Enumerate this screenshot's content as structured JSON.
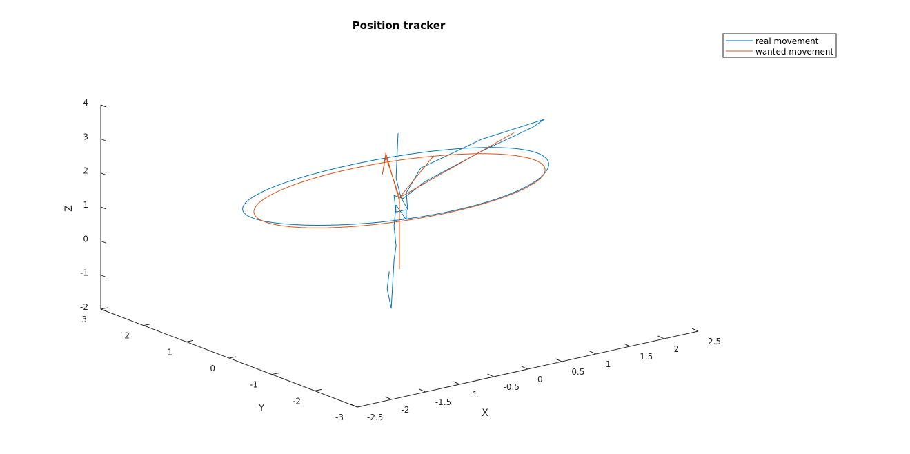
{
  "chart_data": {
    "type": "line",
    "title": "Position tracker",
    "xlabel": "X",
    "ylabel": "Y",
    "zlabel": "Z",
    "xlim": [
      -2.5,
      2.5
    ],
    "ylim": [
      -3,
      3
    ],
    "zlim": [
      -2,
      4
    ],
    "xticks": [
      "-2.5",
      "-2",
      "-1.5",
      "-1",
      "-0.5",
      "0",
      "0.5",
      "1",
      "1.5",
      "2",
      "2.5"
    ],
    "yticks": [
      "-3",
      "-2",
      "-1",
      "0",
      "1",
      "2",
      "3"
    ],
    "zticks": [
      "-2",
      "-1",
      "0",
      "1",
      "2",
      "3",
      "4"
    ],
    "grid": false,
    "legend_position": "top-right",
    "series": [
      {
        "name": "real movement",
        "color": "#0072BD",
        "points": [
          [
            -0.02,
            0.0,
            3.5
          ],
          [
            -0.05,
            0.0,
            2.2
          ],
          [
            0.02,
            0.0,
            1.6
          ],
          [
            0.12,
            0.0,
            1.2
          ],
          [
            0.1,
            0.0,
            1.7
          ],
          [
            0.5,
            0.3,
            2.1
          ],
          [
            1.4,
            0.3,
            2.55
          ],
          [
            2.25,
            0.2,
            2.8
          ],
          [
            2.1,
            0.25,
            2.6
          ],
          [
            1.4,
            0.3,
            2.2
          ],
          [
            0.5,
            0.2,
            1.75
          ],
          [
            0.05,
            0.0,
            1.55
          ],
          [
            -0.08,
            0.0,
            1.7
          ],
          [
            -0.05,
            0.0,
            1.2
          ],
          [
            0.1,
            0.0,
            1.2
          ],
          [
            0.1,
            0.0,
            0.9
          ],
          [
            -0.05,
            0.0,
            1.4
          ],
          [
            -0.08,
            0.0,
            0.8
          ],
          [
            -0.05,
            0.0,
            0.2
          ],
          [
            -0.08,
            0.0,
            -0.2
          ],
          [
            -0.12,
            0.0,
            -1.6
          ],
          [
            -0.18,
            0.0,
            -1.0
          ],
          [
            -0.15,
            0.0,
            -0.5
          ]
        ],
        "circle": {
          "center": [
            0,
            0,
            1.9
          ],
          "radius": 2.1,
          "samples": 120
        }
      },
      {
        "name": "wanted movement",
        "color": "#D95319",
        "points": [
          [
            0.0,
            0.0,
            1.5
          ],
          [
            -0.2,
            0.0,
            3.0
          ],
          [
            -0.25,
            0.0,
            2.4
          ],
          [
            -0.2,
            0.0,
            2.9
          ],
          [
            0.0,
            0.0,
            1.6
          ],
          [
            1.8,
            0.2,
            2.6
          ],
          [
            0.0,
            0.0,
            1.6
          ],
          [
            0.5,
            0.0,
            2.6
          ],
          [
            0.0,
            0.0,
            1.6
          ],
          [
            0.0,
            0.0,
            -0.5
          ]
        ],
        "circle": {
          "center": [
            0,
            0,
            1.8
          ],
          "radius": 2.0,
          "samples": 120
        }
      }
    ]
  }
}
